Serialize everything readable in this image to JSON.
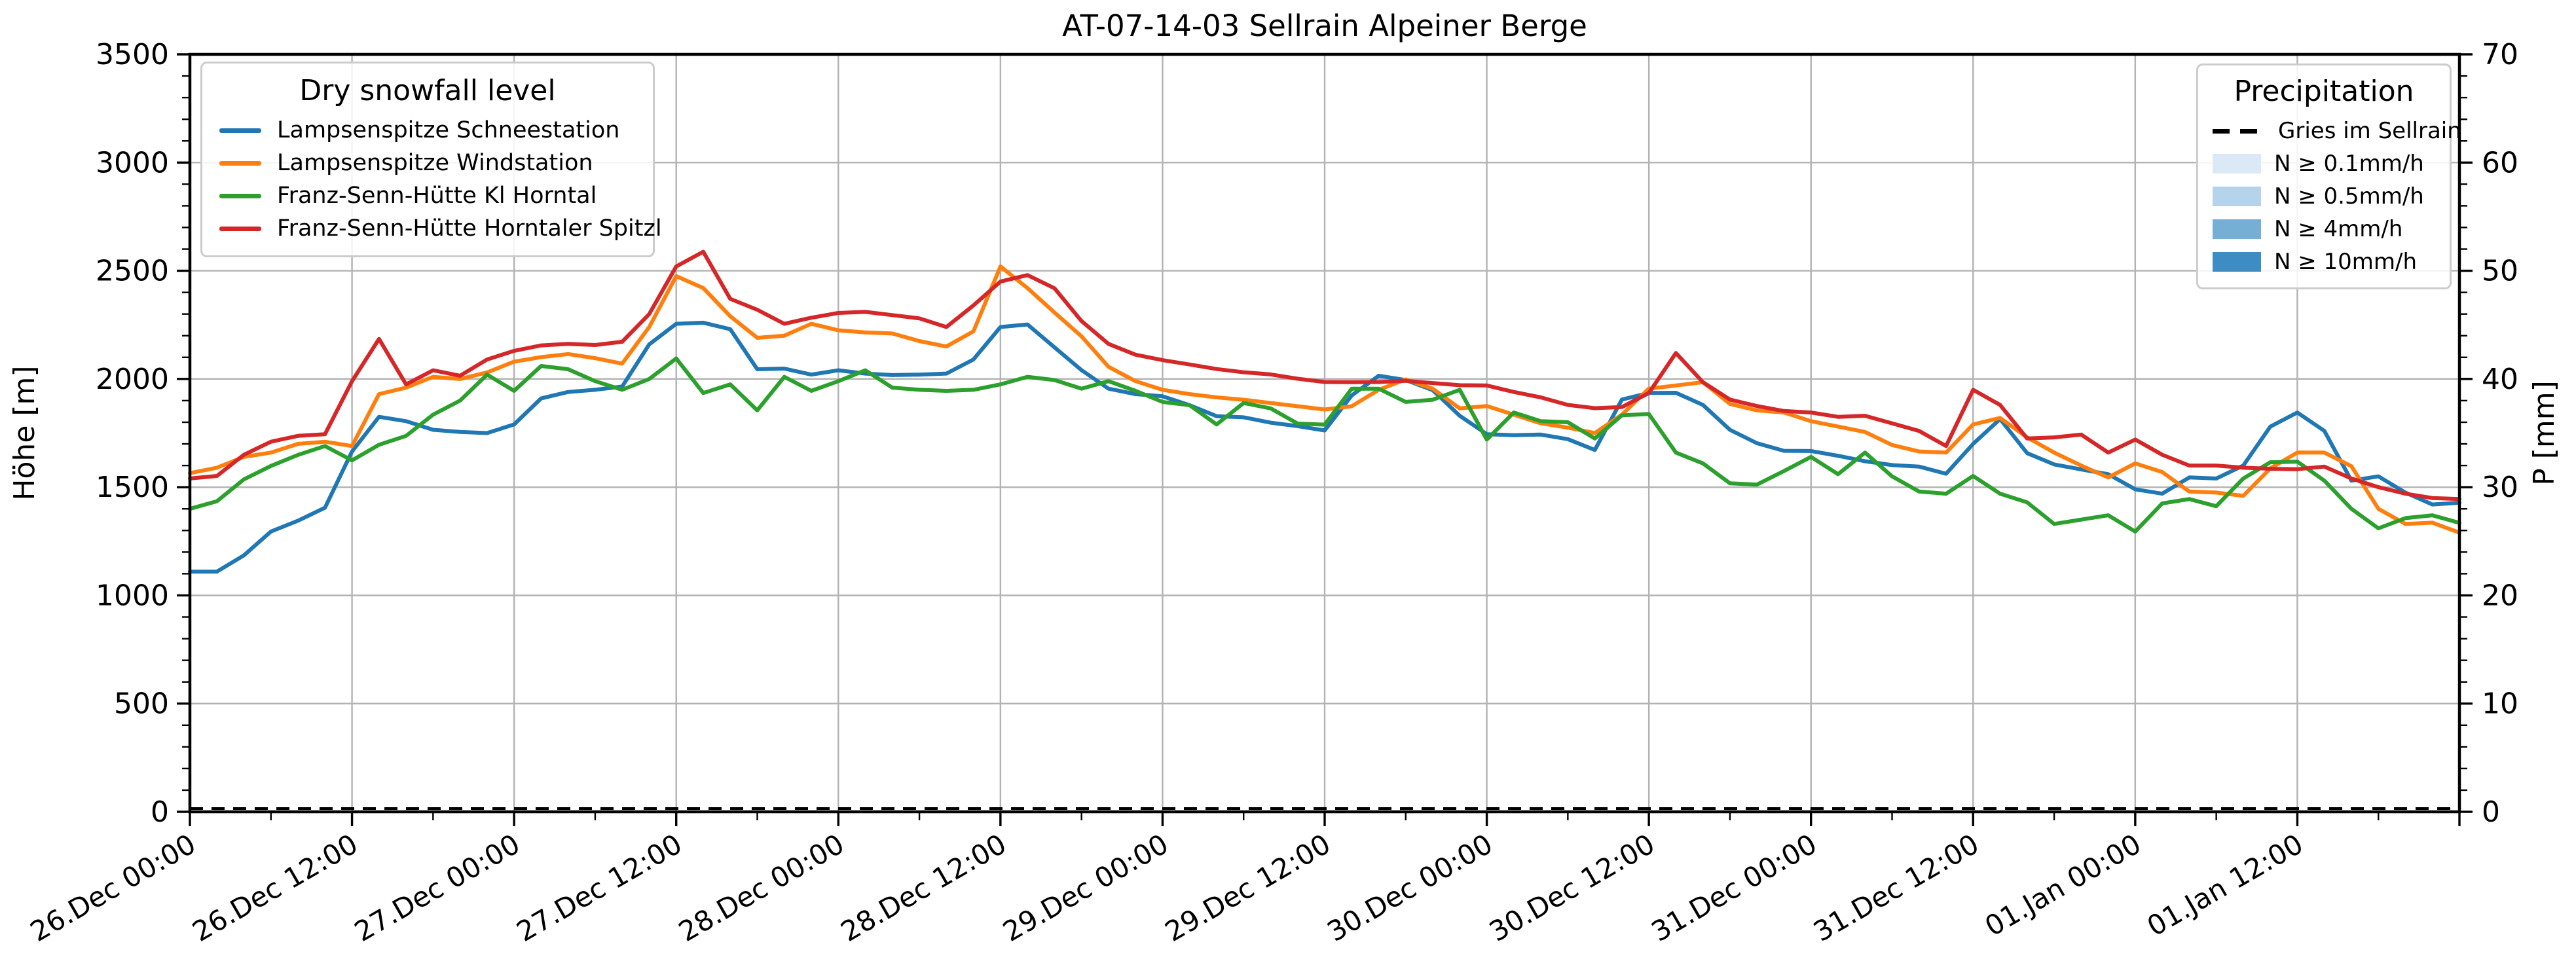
{
  "title": "AT-07-14-03 Sellrain Alpeiner Berge",
  "axes": {
    "ylabel_left": "Höhe [m]",
    "ylabel_right": "P [mm]",
    "y_left": {
      "min": 0,
      "max": 3500,
      "tick_step": 500,
      "minor_step": 100,
      "tick_labels": [
        "0",
        "500",
        "1000",
        "1500",
        "2000",
        "2500",
        "3000",
        "3500"
      ]
    },
    "y_right": {
      "min": 0,
      "max": 70,
      "tick_step": 10,
      "minor_step": 2,
      "tick_labels": [
        "0",
        "10",
        "20",
        "30",
        "40",
        "50",
        "60",
        "70"
      ]
    },
    "x_max": 168,
    "x_tick_hours": [
      0,
      12,
      24,
      36,
      48,
      60,
      72,
      84,
      96,
      108,
      120,
      132,
      144,
      156
    ],
    "x_minor_hours": [
      6,
      18,
      30,
      42,
      54,
      66,
      78,
      90,
      102,
      114,
      126,
      138,
      150,
      162
    ],
    "x_tick_labels": [
      "26.Dec 00:00",
      "26.Dec 12:00",
      "27.Dec 00:00",
      "27.Dec 12:00",
      "28.Dec 00:00",
      "28.Dec 12:00",
      "29.Dec 00:00",
      "29.Dec 12:00",
      "30.Dec 00:00",
      "30.Dec 12:00",
      "31.Dec 00:00",
      "31.Dec 12:00",
      "01.Jan 00:00",
      "01.Jan 12:00"
    ],
    "grid_color": "#b2b2b2",
    "spine_color": "#000000"
  },
  "legend_snow": {
    "title": "Dry snowfall level",
    "items": [
      {
        "label": "Lampsenspitze Schneestation",
        "color": "#1f77b4"
      },
      {
        "label": "Lampsenspitze Windstation",
        "color": "#ff7f0e"
      },
      {
        "label": "Franz-Senn-Hütte Kl Horntal",
        "color": "#2ca02c"
      },
      {
        "label": "Franz-Senn-Hütte Horntaler Spitzl",
        "color": "#d62728"
      }
    ]
  },
  "legend_precip": {
    "title": "Precipitation",
    "items": [
      {
        "label": "Gries im Sellrain",
        "type": "dashed-line",
        "color": "#000000"
      },
      {
        "label": "N ≥ 0.1mm/h",
        "type": "patch",
        "color": "#dbe9f6"
      },
      {
        "label": "N ≥ 0.5mm/h",
        "type": "patch",
        "color": "#b5d3ea"
      },
      {
        "label": "N ≥ 4mm/h",
        "type": "patch",
        "color": "#75afd5"
      },
      {
        "label": "N ≥ 10mm/h",
        "type": "patch",
        "color": "#3d8dc4"
      }
    ]
  },
  "chart_data": {
    "type": "line",
    "title": "AT-07-14-03 Sellrain Alpeiner Berge",
    "xlabel": "",
    "ylabel": "Höhe [m]",
    "ylabel_secondary": "P [mm]",
    "x_unit": "hours since 26.Dec 00:00",
    "xlim": [
      0,
      168
    ],
    "ylim_left": [
      0,
      3500
    ],
    "ylim_right": [
      0,
      70
    ],
    "grid": true,
    "x": [
      0,
      2,
      4,
      6,
      8,
      10,
      12,
      14,
      16,
      18,
      20,
      22,
      24,
      26,
      28,
      30,
      32,
      34,
      36,
      38,
      40,
      42,
      44,
      46,
      48,
      50,
      52,
      54,
      56,
      58,
      60,
      62,
      64,
      66,
      68,
      70,
      72,
      74,
      76,
      78,
      80,
      82,
      84,
      86,
      88,
      90,
      92,
      94,
      96,
      98,
      100,
      102,
      104,
      106,
      108,
      110,
      112,
      114,
      116,
      118,
      120,
      122,
      124,
      126,
      128,
      130,
      132,
      134,
      136,
      138,
      140,
      142,
      144,
      146,
      148,
      150,
      152,
      154,
      156,
      158,
      160,
      162,
      164,
      166,
      168
    ],
    "series": [
      {
        "name": "Lampsenspitze Schneestation",
        "color": "#1f77b4",
        "values": [
          1110,
          1110,
          1185,
          1295,
          1345,
          1405,
          1665,
          1825,
          1805,
          1765,
          1755,
          1750,
          1790,
          1910,
          1940,
          1950,
          1965,
          2160,
          2255,
          2260,
          2230,
          2045,
          2048,
          2020,
          2040,
          2025,
          2018,
          2020,
          2025,
          2090,
          2240,
          2252,
          2146,
          2041,
          1955,
          1930,
          1920,
          1879,
          1828,
          1823,
          1798,
          1782,
          1762,
          1924,
          2015,
          1995,
          1948,
          1830,
          1745,
          1740,
          1743,
          1722,
          1672,
          1905,
          1935,
          1936,
          1880,
          1765,
          1703,
          1668,
          1667,
          1645,
          1620,
          1602,
          1595,
          1562,
          1700,
          1815,
          1657,
          1605,
          1582,
          1560,
          1490,
          1470,
          1545,
          1540,
          1600,
          1780,
          1845,
          1760,
          1530,
          1550,
          1475,
          1420,
          1428
        ]
      },
      {
        "name": "Lampsenspitze Windstation",
        "color": "#ff7f0e",
        "values": [
          1565,
          1590,
          1640,
          1660,
          1700,
          1710,
          1690,
          1930,
          1960,
          2010,
          2000,
          2030,
          2080,
          2101,
          2115,
          2096,
          2071,
          2240,
          2475,
          2420,
          2290,
          2190,
          2200,
          2255,
          2225,
          2215,
          2210,
          2175,
          2150,
          2220,
          2520,
          2420,
          2307,
          2197,
          2056,
          1990,
          1950,
          1930,
          1915,
          1904,
          1889,
          1874,
          1859,
          1874,
          1950,
          1998,
          1955,
          1864,
          1875,
          1835,
          1795,
          1775,
          1750,
          1835,
          1955,
          1970,
          1985,
          1885,
          1855,
          1845,
          1805,
          1780,
          1755,
          1695,
          1665,
          1660,
          1790,
          1820,
          1730,
          1660,
          1600,
          1545,
          1610,
          1570,
          1480,
          1475,
          1460,
          1587,
          1660,
          1660,
          1597,
          1400,
          1330,
          1336,
          1290
        ]
      },
      {
        "name": "Franz-Senn-Hütte Kl Horntal",
        "color": "#2ca02c",
        "values": [
          1400,
          1435,
          1536,
          1598,
          1649,
          1690,
          1624,
          1696,
          1737,
          1835,
          1900,
          2020,
          1945,
          2060,
          2045,
          1990,
          1950,
          2000,
          2095,
          1935,
          1975,
          1855,
          2010,
          1945,
          1990,
          2040,
          1960,
          1950,
          1945,
          1950,
          1975,
          2010,
          1995,
          1955,
          1990,
          1945,
          1894,
          1879,
          1790,
          1889,
          1864,
          1794,
          1789,
          1955,
          1955,
          1894,
          1904,
          1950,
          1720,
          1845,
          1805,
          1800,
          1725,
          1832,
          1838,
          1660,
          1610,
          1518,
          1512,
          1575,
          1640,
          1560,
          1660,
          1550,
          1480,
          1470,
          1552,
          1470,
          1430,
          1330,
          1350,
          1370,
          1295,
          1425,
          1445,
          1412,
          1540,
          1615,
          1618,
          1530,
          1400,
          1310,
          1357,
          1370,
          1335
        ]
      },
      {
        "name": "Franz-Senn-Hütte Horntaler Spitzl",
        "color": "#d62728",
        "values": [
          1540,
          1552,
          1650,
          1710,
          1737,
          1745,
          1990,
          2185,
          1975,
          2040,
          2015,
          2090,
          2130,
          2155,
          2162,
          2157,
          2172,
          2300,
          2520,
          2588,
          2370,
          2320,
          2255,
          2283,
          2305,
          2310,
          2295,
          2280,
          2240,
          2340,
          2450,
          2480,
          2419,
          2268,
          2162,
          2112,
          2087,
          2067,
          2046,
          2031,
          2021,
          2001,
          1986,
          1985,
          1986,
          1991,
          1981,
          1971,
          1970,
          1940,
          1915,
          1880,
          1865,
          1870,
          1935,
          2120,
          1985,
          1905,
          1875,
          1852,
          1845,
          1825,
          1830,
          1795,
          1760,
          1690,
          1950,
          1880,
          1725,
          1730,
          1743,
          1660,
          1720,
          1650,
          1600,
          1600,
          1590,
          1585,
          1583,
          1595,
          1540,
          1500,
          1470,
          1450,
          1445
        ]
      }
    ],
    "reference_line": {
      "name": "Gries im Sellrain",
      "style": "dashed",
      "color": "#000000",
      "value": 0,
      "axis": "right"
    }
  }
}
